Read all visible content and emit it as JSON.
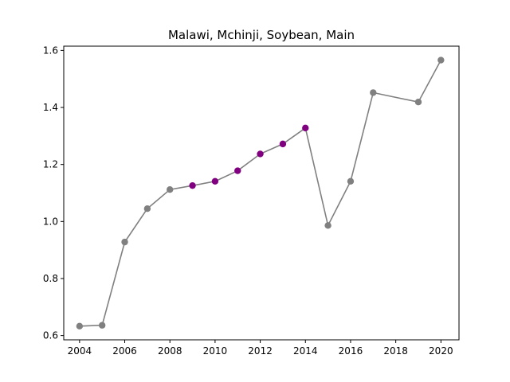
{
  "chart_data": {
    "type": "line",
    "title": "Malawi, Mchinji, Soybean, Main",
    "xlabel": "",
    "ylabel": "",
    "xlim": [
      2003.3,
      2020.8
    ],
    "ylim": [
      0.585,
      1.615
    ],
    "x_ticks": [
      2004,
      2006,
      2008,
      2010,
      2012,
      2014,
      2016,
      2018,
      2020
    ],
    "y_ticks": [
      0.6,
      0.8,
      1.0,
      1.2,
      1.4,
      1.6
    ],
    "x_tick_labels": [
      "2004",
      "2006",
      "2008",
      "2010",
      "2012",
      "2014",
      "2016",
      "2018",
      "2020"
    ],
    "y_tick_labels": [
      "0.6",
      "0.8",
      "1.0",
      "1.2",
      "1.4",
      "1.6"
    ],
    "grid": false,
    "line_color": "#808080",
    "series": [
      {
        "x": [
          2004,
          2005,
          2006,
          2007,
          2008,
          2009,
          2010,
          2011,
          2012,
          2013,
          2014,
          2015,
          2016,
          2017,
          2019,
          2020
        ],
        "values": [
          0.633,
          0.636,
          0.928,
          1.045,
          1.112,
          1.126,
          1.141,
          1.178,
          1.237,
          1.272,
          1.328,
          0.986,
          1.141,
          1.452,
          1.419,
          1.566
        ],
        "point_colors": [
          "#808080",
          "#808080",
          "#808080",
          "#808080",
          "#808080",
          "#800080",
          "#800080",
          "#800080",
          "#800080",
          "#800080",
          "#800080",
          "#808080",
          "#808080",
          "#808080",
          "#808080",
          "#808080"
        ]
      }
    ]
  }
}
